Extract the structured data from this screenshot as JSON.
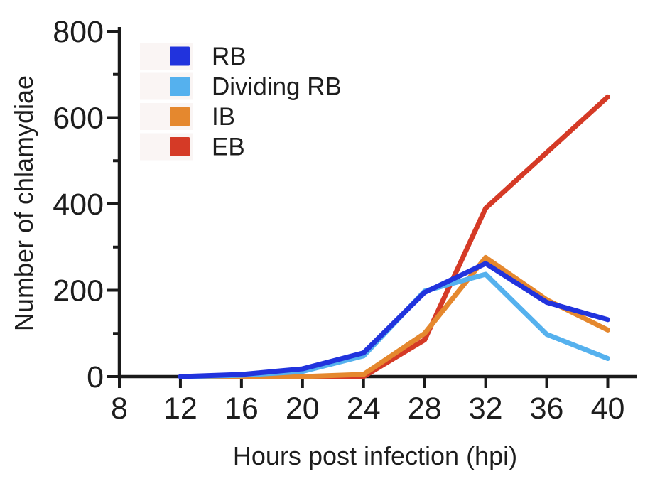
{
  "figure": {
    "background": "#ffffff",
    "axis_color": "#1a1a1a",
    "text_color": "#1d1d1d",
    "legend_highlight_color": "#faf5f4"
  },
  "chart_data": {
    "type": "line",
    "title": "",
    "xlabel": "Hours post infection (hpi)",
    "ylabel": "Number of chlamydiae",
    "x": [
      12,
      16,
      20,
      24,
      28,
      32,
      36,
      40
    ],
    "xlim": [
      8,
      40
    ],
    "ylim": [
      0,
      800
    ],
    "x_ticks": [
      8,
      12,
      16,
      20,
      24,
      28,
      32,
      36,
      40
    ],
    "y_ticks_major": [
      0,
      200,
      400,
      600,
      800
    ],
    "y_ticks_minor": [
      100,
      300,
      500,
      700
    ],
    "grid": false,
    "legend": {
      "position": "inside-top-left",
      "items": [
        "RB",
        "Dividing RB",
        "IB",
        "EB"
      ]
    },
    "series": [
      {
        "name": "RB",
        "color": "#2133dd",
        "values": [
          0,
          5,
          18,
          55,
          195,
          262,
          172,
          132
        ]
      },
      {
        "name": "Dividing RB",
        "color": "#55b1ee",
        "values": [
          0,
          3,
          12,
          48,
          198,
          237,
          98,
          42
        ]
      },
      {
        "name": "IB",
        "color": "#e5882e",
        "values": [
          0,
          0,
          0,
          5,
          100,
          276,
          178,
          108
        ]
      },
      {
        "name": "EB",
        "color": "#d53a26",
        "values": [
          0,
          0,
          0,
          0,
          85,
          390,
          519,
          648
        ]
      }
    ],
    "draw_order": [
      "EB",
      "IB",
      "Dividing RB",
      "RB"
    ]
  }
}
